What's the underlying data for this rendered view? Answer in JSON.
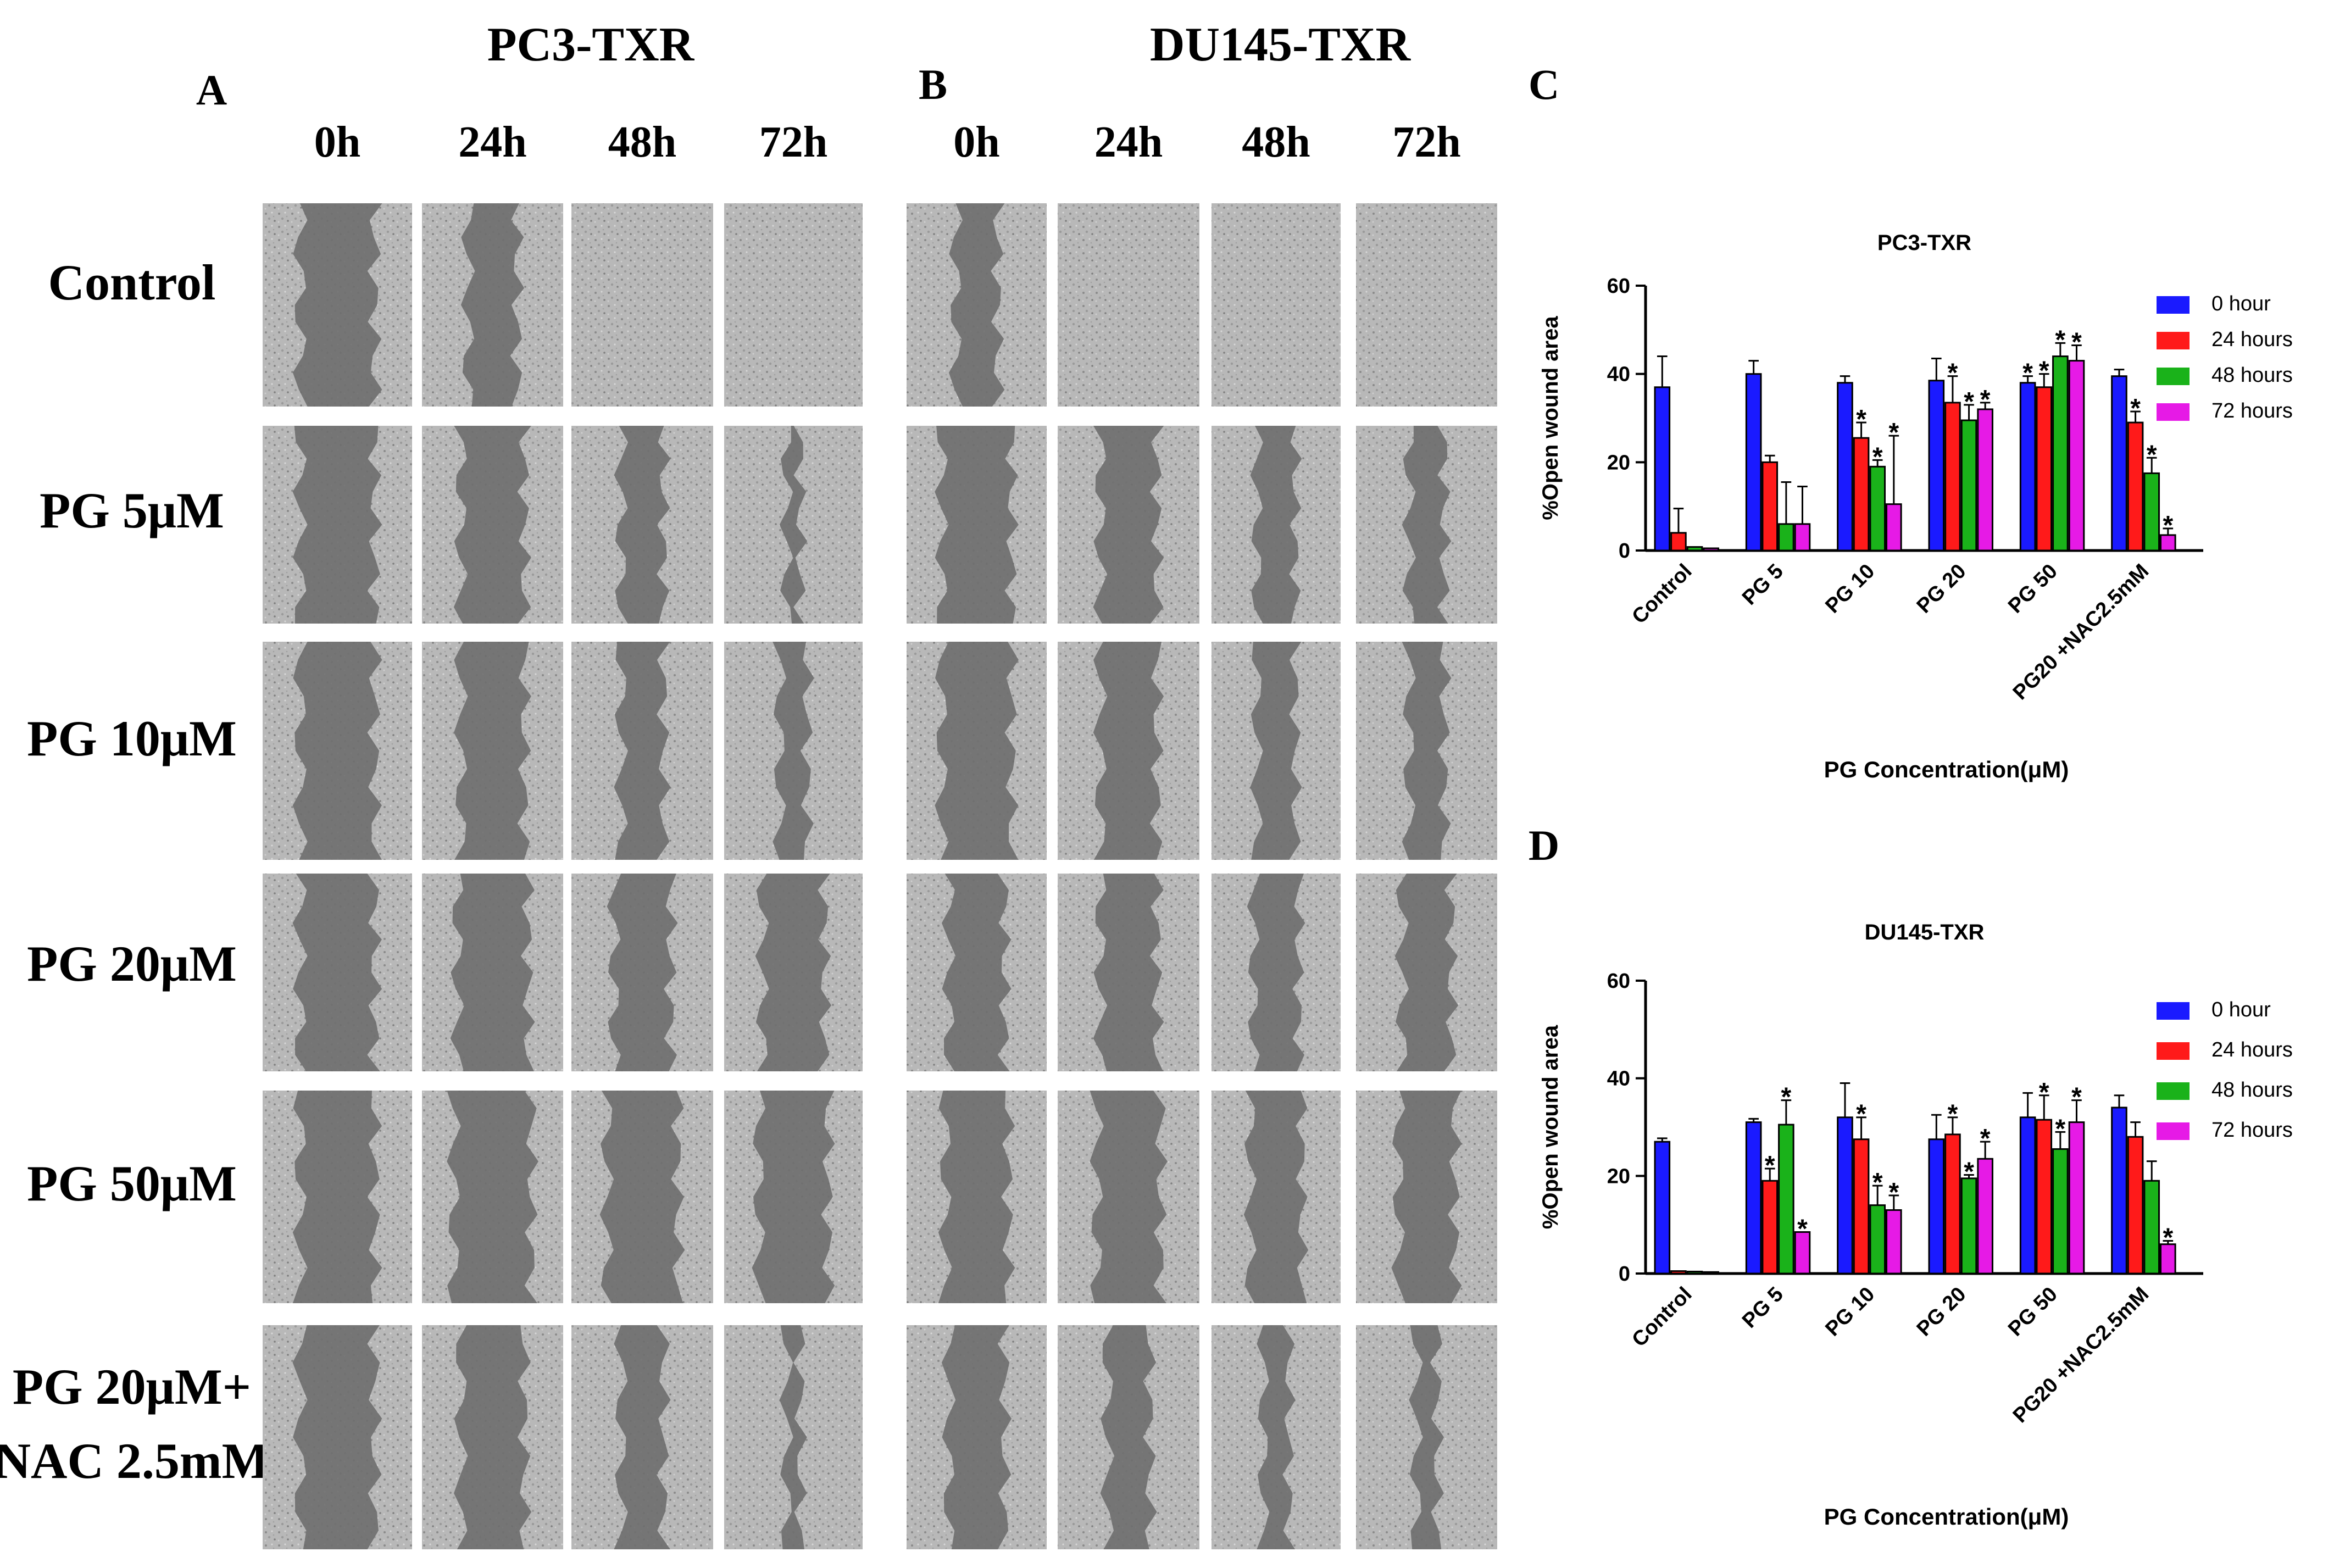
{
  "panel_labels": {
    "A": "A",
    "B": "B",
    "C": "C",
    "D": "D"
  },
  "cell_lines": {
    "pc3": "PC3-TXR",
    "du145": "DU145-TXR"
  },
  "time_points": [
    "0h",
    "24h",
    "48h",
    "72h"
  ],
  "treatments": [
    "Control",
    "PG 5μM",
    "PG 10μM",
    "PG 20μM",
    "PG 50μM",
    "PG 20μM+",
    "NAC 2.5mM"
  ],
  "micrograph_wound_widths_fraction": {
    "pc3": [
      [
        0.5,
        0.35,
        0.0,
        0.0
      ],
      [
        0.5,
        0.45,
        0.3,
        0.1
      ],
      [
        0.5,
        0.45,
        0.3,
        0.2
      ],
      [
        0.5,
        0.5,
        0.4,
        0.45
      ],
      [
        0.5,
        0.55,
        0.5,
        0.5
      ],
      [
        0.5,
        0.45,
        0.3,
        0.1
      ]
    ],
    "du145": [
      [
        0.3,
        0.0,
        0.0,
        0.0
      ],
      [
        0.5,
        0.4,
        0.3,
        0.25
      ],
      [
        0.5,
        0.4,
        0.3,
        0.25
      ],
      [
        0.4,
        0.4,
        0.35,
        0.35
      ],
      [
        0.45,
        0.45,
        0.4,
        0.4
      ],
      [
        0.4,
        0.3,
        0.2,
        0.15
      ]
    ]
  },
  "colors": {
    "0 hour": "#1a1aff",
    "24 hours": "#ff1a1a",
    "48 hours": "#1ab21a",
    "72 hours": "#e61ae6"
  },
  "chart_data": [
    {
      "type": "bar",
      "panel": "C",
      "title": "PC3-TXR",
      "xlabel": "PG Concentration(μM)",
      "ylabel": "%Open wound area",
      "ylim": [
        0,
        60
      ],
      "yticks": [
        "0",
        "20",
        "40",
        "60"
      ],
      "categories": [
        "Control",
        "PG 5",
        "PG 10",
        "PG 20",
        "PG 50",
        "PG20 +NAC2.5mM"
      ],
      "series": [
        {
          "name": "0 hour",
          "values": [
            37,
            40,
            38,
            38.5,
            38,
            39.5
          ],
          "errors": [
            7,
            3,
            1.5,
            5,
            1.5,
            1.5
          ],
          "significant": [
            false,
            false,
            false,
            false,
            true,
            false
          ]
        },
        {
          "name": "24 hours",
          "values": [
            4,
            20,
            25.5,
            33.5,
            37,
            29
          ],
          "errors": [
            5.5,
            1.5,
            3.5,
            6,
            3,
            2.5
          ],
          "significant": [
            false,
            false,
            true,
            true,
            true,
            true
          ]
        },
        {
          "name": "48 hours",
          "values": [
            0.8,
            6,
            19,
            29.5,
            44,
            17.5
          ],
          "errors": [
            0,
            9.5,
            1.5,
            3.5,
            3,
            3.5
          ],
          "significant": [
            false,
            false,
            true,
            true,
            true,
            true
          ]
        },
        {
          "name": "72 hours",
          "values": [
            0.5,
            6,
            10.5,
            32,
            43,
            3.5
          ],
          "errors": [
            0,
            8.5,
            15.5,
            1.5,
            3.5,
            1.5
          ],
          "significant": [
            false,
            false,
            true,
            true,
            true,
            true
          ]
        }
      ]
    },
    {
      "type": "bar",
      "panel": "D",
      "title": "DU145-TXR",
      "xlabel": "PG Concentration(μM)",
      "ylabel": "%Open wound area",
      "ylim": [
        0,
        60
      ],
      "yticks": [
        "0",
        "20",
        "40",
        "60"
      ],
      "categories": [
        "Control",
        "PG 5",
        "PG 10",
        "PG 20",
        "PG 50",
        "PG20 +NAC2.5mM"
      ],
      "series": [
        {
          "name": "0 hour",
          "values": [
            27,
            31,
            32,
            27.5,
            32,
            34
          ],
          "errors": [
            0.7,
            0.7,
            7,
            5,
            5,
            2.5
          ],
          "significant": [
            false,
            false,
            false,
            false,
            false,
            false
          ]
        },
        {
          "name": "24 hours",
          "values": [
            0.5,
            19,
            27.5,
            28.5,
            31.5,
            28
          ],
          "errors": [
            0,
            2.5,
            4.5,
            3.5,
            5,
            3
          ],
          "significant": [
            false,
            true,
            true,
            true,
            true,
            false
          ]
        },
        {
          "name": "48 hours",
          "values": [
            0.4,
            30.5,
            14,
            19.5,
            25.5,
            19
          ],
          "errors": [
            0,
            5,
            4,
            0.7,
            3.5,
            4
          ],
          "significant": [
            false,
            true,
            true,
            true,
            true,
            false
          ]
        },
        {
          "name": "72 hours",
          "values": [
            0.3,
            8.5,
            13,
            23.5,
            31,
            6
          ],
          "errors": [
            0,
            0,
            3,
            3.5,
            4.5,
            0.7
          ],
          "significant": [
            false,
            true,
            true,
            true,
            true,
            true
          ]
        }
      ]
    }
  ]
}
